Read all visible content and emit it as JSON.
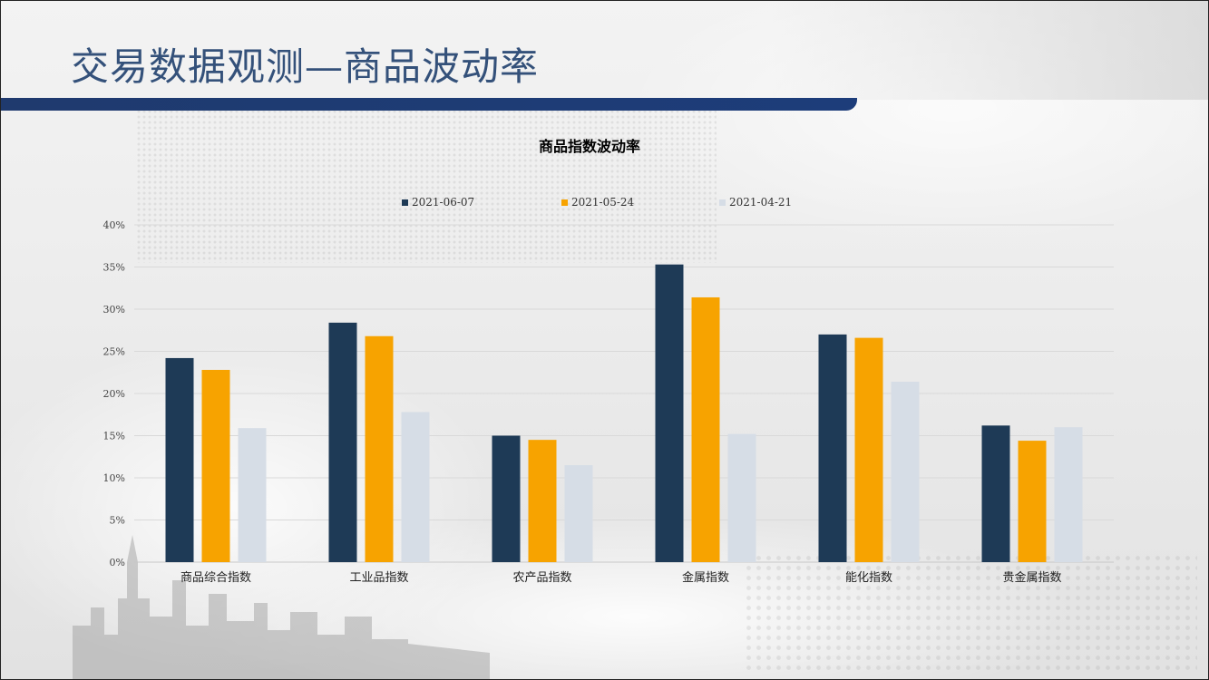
{
  "header": {
    "title": "交易数据观测—商品波动率"
  },
  "colors": {
    "series1": "#1e3a56",
    "series2": "#f7a300",
    "series3": "#d6dde6",
    "title_color": "#34517a",
    "bar_blue": "#1f3a6e"
  },
  "chart_data": {
    "type": "bar",
    "title": "商品指数波动率",
    "categories": [
      "商品综合指数",
      "工业品指数",
      "农产品指数",
      "金属指数",
      "能化指数",
      "贵金属指数"
    ],
    "series": [
      {
        "name": "2021-06-07",
        "values": [
          24.2,
          28.4,
          15.0,
          35.3,
          27.0,
          16.2
        ]
      },
      {
        "name": "2021-05-24",
        "values": [
          22.8,
          26.8,
          14.5,
          31.4,
          26.6,
          14.4
        ]
      },
      {
        "name": "2021-04-21",
        "values": [
          15.9,
          17.8,
          11.5,
          15.2,
          21.4,
          16.0
        ]
      }
    ],
    "yticks": [
      "0%",
      "5%",
      "10%",
      "15%",
      "20%",
      "25%",
      "30%",
      "35%",
      "40%"
    ],
    "ylim": [
      0,
      40
    ],
    "ylabel": "",
    "xlabel": "",
    "grid": true,
    "legend_position": "top"
  }
}
